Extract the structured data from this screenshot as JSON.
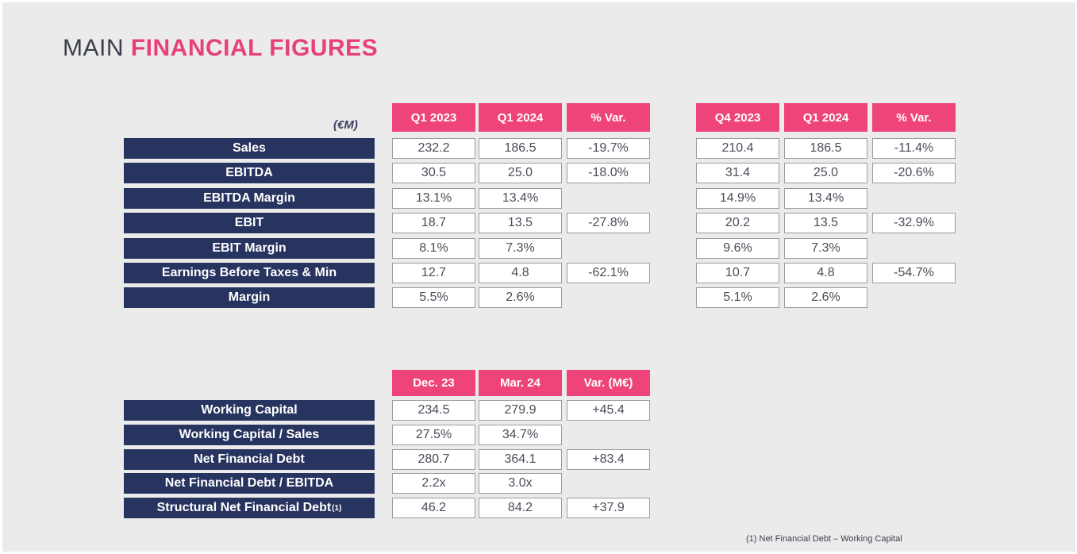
{
  "title": {
    "part1": "MAIN ",
    "part2": "FINANCIAL FIGURES"
  },
  "unit_label": "(€M)",
  "table1": {
    "headers_left": [
      "Q1 2023",
      "Q1 2024",
      "% Var."
    ],
    "headers_right": [
      "Q4 2023",
      "Q1 2024",
      "% Var."
    ],
    "rows": [
      {
        "label": "Sales",
        "left": [
          "232.2",
          "186.5",
          "-19.7%"
        ],
        "right": [
          "210.4",
          "186.5",
          "-11.4%"
        ]
      },
      {
        "label": "EBITDA",
        "left": [
          "30.5",
          "25.0",
          "-18.0%"
        ],
        "right": [
          "31.4",
          "25.0",
          "-20.6%"
        ]
      },
      {
        "label": "EBITDA Margin",
        "left": [
          "13.1%",
          "13.4%",
          ""
        ],
        "right": [
          "14.9%",
          "13.4%",
          ""
        ]
      },
      {
        "label": "EBIT",
        "left": [
          "18.7",
          "13.5",
          "-27.8%"
        ],
        "right": [
          "20.2",
          "13.5",
          "-32.9%"
        ]
      },
      {
        "label": "EBIT Margin",
        "left": [
          "8.1%",
          "7.3%",
          ""
        ],
        "right": [
          "9.6%",
          "7.3%",
          ""
        ]
      },
      {
        "label": "Earnings Before Taxes & Min",
        "left": [
          "12.7",
          "4.8",
          "-62.1%"
        ],
        "right": [
          "10.7",
          "4.8",
          "-54.7%"
        ]
      },
      {
        "label": "Margin",
        "left": [
          "5.5%",
          "2.6%",
          ""
        ],
        "right": [
          "5.1%",
          "2.6%",
          ""
        ]
      }
    ]
  },
  "table2": {
    "headers": [
      "Dec. 23",
      "Mar. 24",
      "Var. (M€)"
    ],
    "rows": [
      {
        "label": "Working Capital",
        "values": [
          "234.5",
          "279.9",
          "+45.4"
        ]
      },
      {
        "label": "Working Capital / Sales",
        "values": [
          "27.5%",
          "34.7%",
          ""
        ]
      },
      {
        "label": "Net Financial Debt",
        "values": [
          "280.7",
          "364.1",
          "+83.4"
        ]
      },
      {
        "label": "Net Financial Debt / EBITDA",
        "values": [
          "2.2x",
          "3.0x",
          ""
        ]
      },
      {
        "label": "Structural Net Financial Debt",
        "label_sup": "(1)",
        "values": [
          "46.2",
          "84.2",
          "+37.9"
        ]
      }
    ]
  },
  "footnote": "(1) Net Financial Debt – Working Capital"
}
